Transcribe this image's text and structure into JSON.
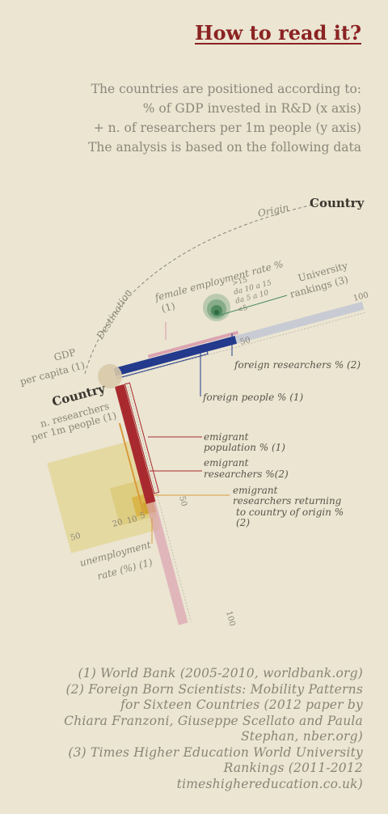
{
  "title": "How to read it?",
  "intro_lines": [
    "The countries are positioned according to:",
    "% of GDP invested in R&D (x axis)",
    "+ n. of researchers per 1m people (y axis)",
    "The analysis is based on the following data"
  ],
  "labels": {
    "origin": "Origin",
    "destination": "Destination",
    "country_top": "Country",
    "country_center": "Country",
    "gdp_line1": "GDP",
    "gdp_line2": "per capita (1)",
    "researchers_line1": "n. researchers",
    "researchers_line2": "per 1m people (1)",
    "female_line1": "female employment rate %",
    "female_line2": "(1)",
    "university_line1": "University",
    "university_line2": "rankings (3)",
    "rank_gt15": ">15",
    "rank_10_15": "da 10 a 15",
    "rank_5_10": "da 5 a 10",
    "rank_lt5": "<5",
    "tick_50_h": "50",
    "tick_100_h": "100",
    "foreign_researchers": "foreign researchers % (2)",
    "foreign_people": "foreign people % (1)",
    "emigrant_pop_line1": "emigrant",
    "emigrant_pop_line2": "population % (1)",
    "emigrant_res_line1": "emigrant",
    "emigrant_res_line2": "researchers %(2)",
    "returning_line1": "emigrant",
    "returning_line2": "researchers returning",
    "returning_line3": "to country of origin %",
    "returning_line4": "(2)",
    "tick_50_v": "50",
    "tick_100_v": "100",
    "unemp_50": "50",
    "unemp_20": "20",
    "unemp_10": "10",
    "unemp_5": "5",
    "unemp_line1": "unemployment",
    "unemp_line2": "rate (%) (1)"
  },
  "footer_lines": [
    "(1) World Bank (2005-2010, worldbank.org)",
    "(2) Foreign Born Scientists: Mobility Patterns",
    "for Sixteen Countries (2012 paper by",
    "Chiara Franzoni, Giuseppe Scellato and Paula",
    "Stephan, nber.org)",
    "(3) Times Higher Education World University",
    "Rankings (2011-2012",
    "timeshighereducation.co.uk)"
  ],
  "colors": {
    "background": "#ebe5d2",
    "title": "#8b2323",
    "blue_bar": "#243a8c",
    "red_bar": "#a82a2f",
    "pink_bar": "#dba3b0",
    "gray_bar": "#c8cbd3",
    "green_circles": "#4a8a5c",
    "unemployment_square": "#e4d79a",
    "orange_line": "#d99a3a"
  }
}
